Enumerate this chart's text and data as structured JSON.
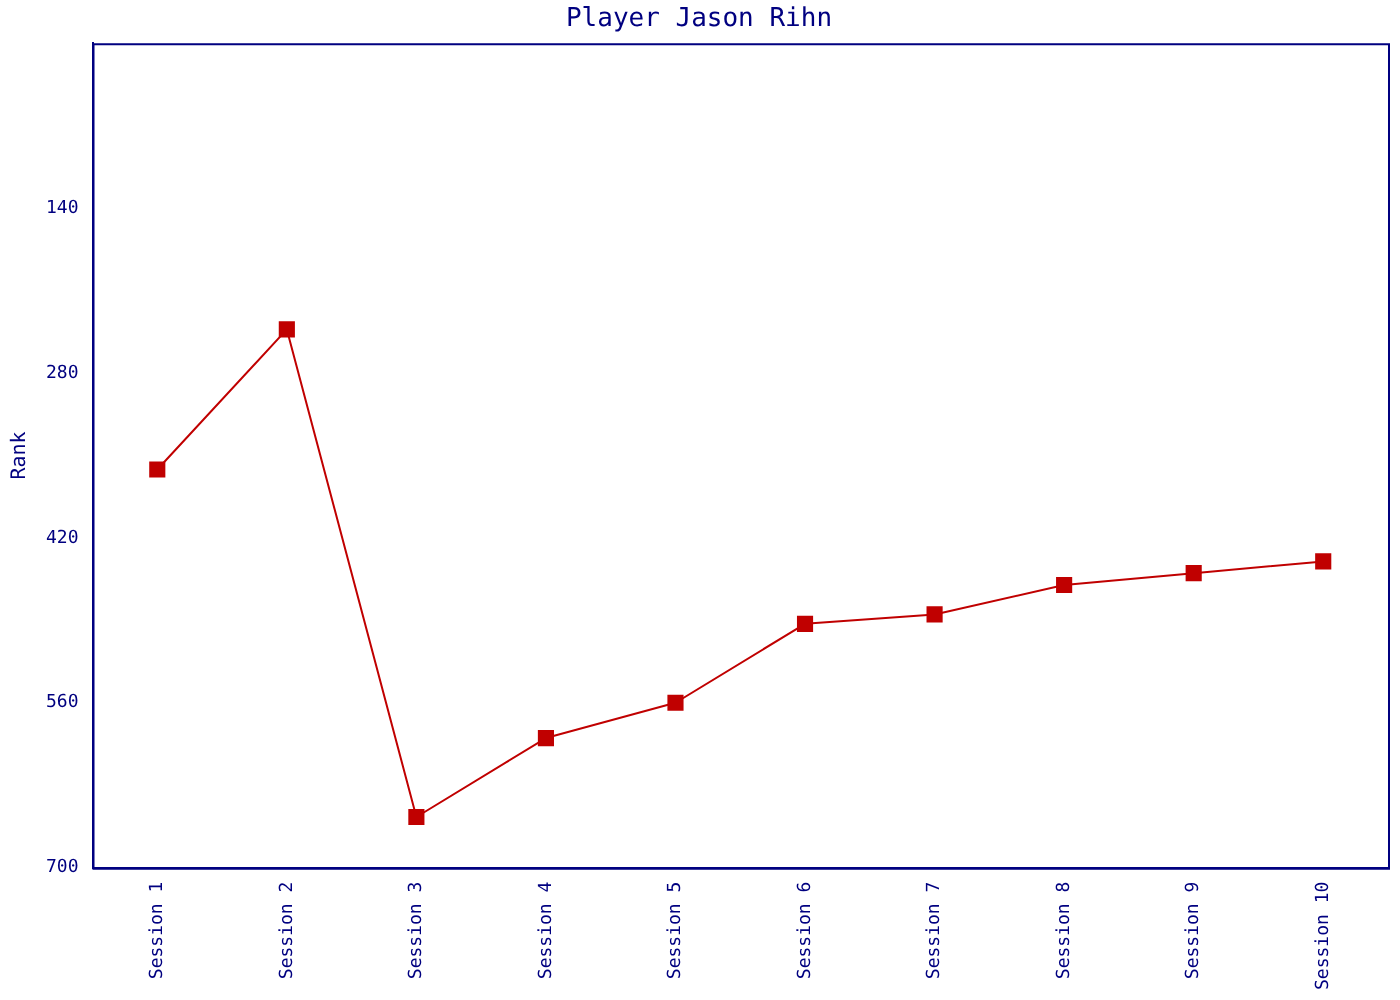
{
  "chart_data": {
    "type": "line",
    "title": "Player Jason Rihn",
    "ylabel": "Rank",
    "categories": [
      "Session 1",
      "Session 2",
      "Session 3",
      "Session 4",
      "Session 5",
      "Session 6",
      "Session 7",
      "Session 8",
      "Session 9",
      "Session 10"
    ],
    "series": [
      {
        "color": "#c00000",
        "values": [
          362,
          243,
          657,
          590,
          560,
          493,
          485,
          460,
          450,
          440
        ]
      }
    ],
    "ylim": [
      700,
      0
    ],
    "yticks": [
      140,
      280,
      420,
      560,
      700
    ],
    "grid": false,
    "legend": false,
    "marker": "square",
    "line_style": "solid"
  }
}
